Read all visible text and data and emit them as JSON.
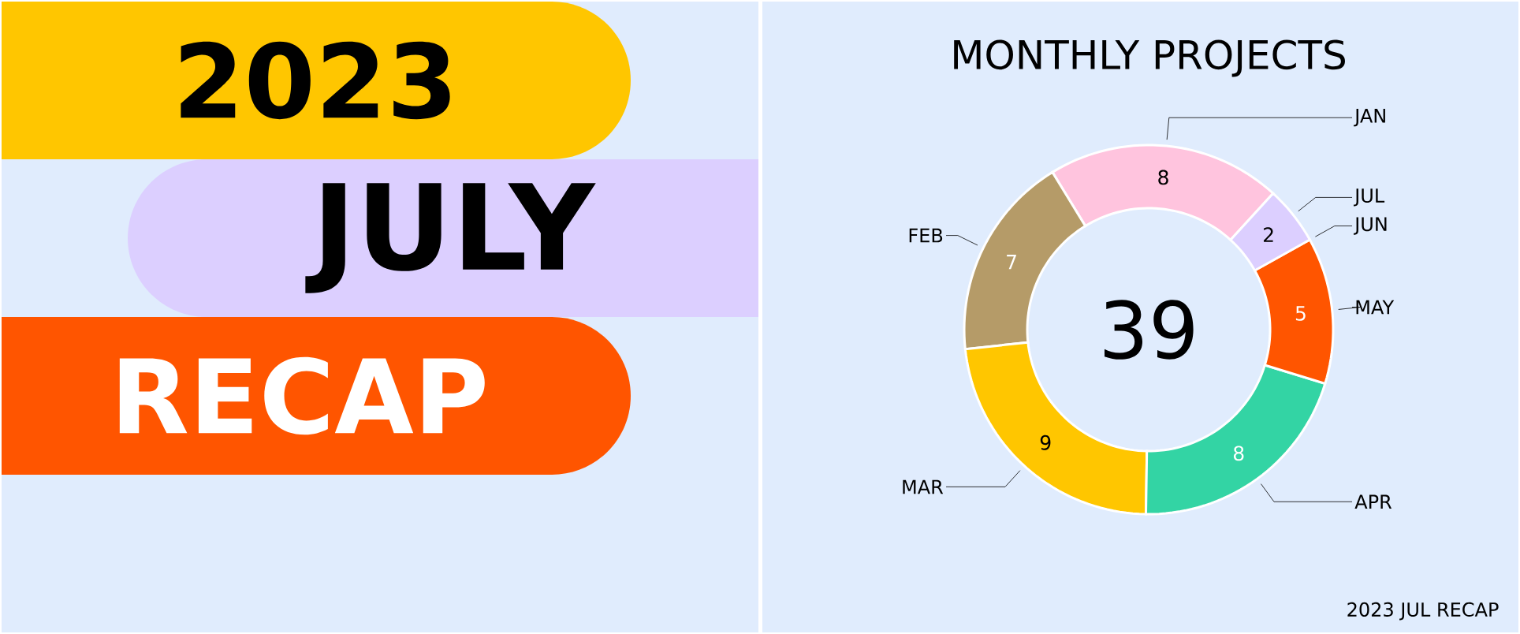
{
  "chart_data": [
    {
      "type": "other",
      "annotations": [
        "2023",
        "JULY",
        "RECAP"
      ]
    },
    {
      "type": "donut",
      "title": "MONTHLY PROJECTS",
      "categories": [
        "JAN",
        "FEB",
        "MAR",
        "APR",
        "MAY",
        "JUN",
        "JUL"
      ],
      "values": [
        8,
        7,
        9,
        8,
        5,
        0,
        2
      ],
      "colors": [
        "#ffc4de",
        "#b59b68",
        "#ffc600",
        "#33d4a4",
        "#ff5500",
        "#8f5dff",
        "#dccfff"
      ],
      "value_labels": [
        "8",
        "7",
        "9",
        "8",
        "5",
        null,
        "2"
      ],
      "annotations": [
        "39",
        "2023 JUL RECAP"
      ]
    }
  ]
}
